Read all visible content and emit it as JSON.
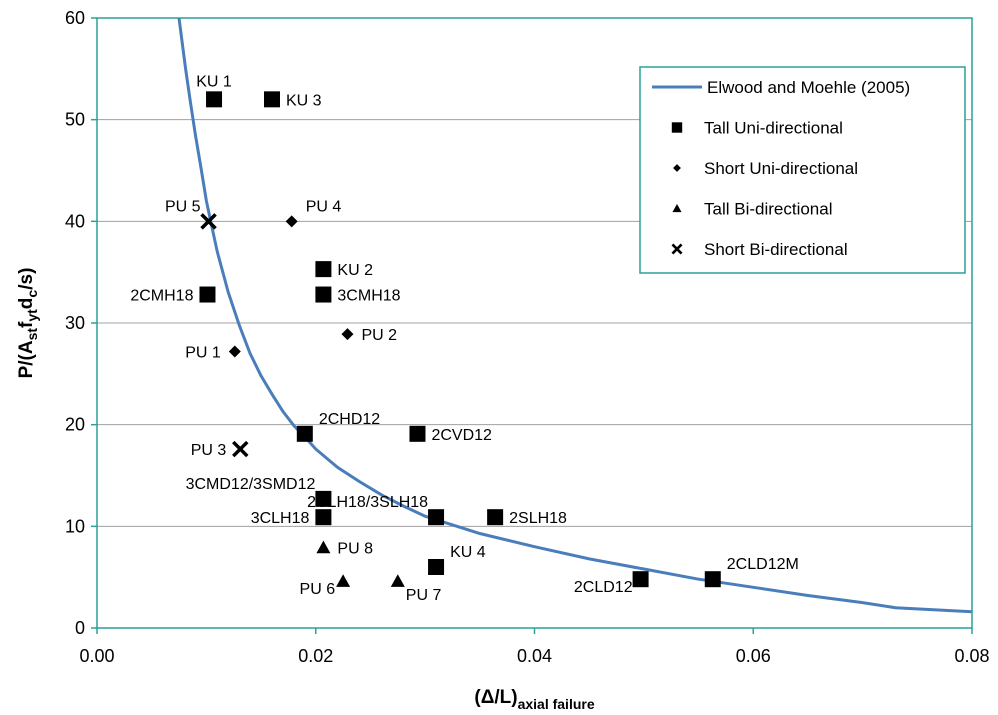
{
  "chart_data": {
    "type": "scatter",
    "xlabel": {
      "main": "(Δ/L)",
      "sub": "axial failure"
    },
    "ylabel": {
      "parts": [
        {
          "t": "P/(A"
        },
        {
          "t": "st",
          "sub": true
        },
        {
          "t": "f"
        },
        {
          "t": "yt",
          "sub": true
        },
        {
          "t": "d"
        },
        {
          "t": "c",
          "sub": true
        },
        {
          "t": "/s)"
        }
      ]
    },
    "xlim": [
      0,
      0.08
    ],
    "ylim": [
      0,
      60
    ],
    "x_ticks": [
      {
        "v": 0.0,
        "label": "0.00"
      },
      {
        "v": 0.02,
        "label": "0.02"
      },
      {
        "v": 0.04,
        "label": "0.04"
      },
      {
        "v": 0.06,
        "label": "0.06"
      },
      {
        "v": 0.08,
        "label": "0.08"
      }
    ],
    "y_ticks": [
      {
        "v": 0,
        "label": "0"
      },
      {
        "v": 10,
        "label": "10"
      },
      {
        "v": 20,
        "label": "20"
      },
      {
        "v": 30,
        "label": "30"
      },
      {
        "v": 40,
        "label": "40"
      },
      {
        "v": 50,
        "label": "50"
      },
      {
        "v": 60,
        "label": "60"
      }
    ],
    "grid": "horizontal",
    "legend_position": "top-right",
    "colors": {
      "curve": "#4a7ebb",
      "frame": "#2aa198",
      "grid": "#a0a0a0",
      "marker": "#000000"
    },
    "series": [
      {
        "name": "Elwood and Moehle (2005)",
        "marker": "line",
        "points": [
          [
            0.0075,
            60.0
          ],
          [
            0.0078,
            57.5
          ],
          [
            0.0081,
            55.0
          ],
          [
            0.0085,
            52.0
          ],
          [
            0.009,
            48.5
          ],
          [
            0.0095,
            45.3
          ],
          [
            0.01,
            42.0
          ],
          [
            0.0105,
            39.5
          ],
          [
            0.011,
            37.0
          ],
          [
            0.012,
            33.0
          ],
          [
            0.013,
            29.8
          ],
          [
            0.014,
            27.0
          ],
          [
            0.015,
            24.8
          ],
          [
            0.016,
            23.0
          ],
          [
            0.017,
            21.3
          ],
          [
            0.018,
            19.9
          ],
          [
            0.019,
            18.8
          ],
          [
            0.02,
            17.6
          ],
          [
            0.022,
            15.8
          ],
          [
            0.024,
            14.4
          ],
          [
            0.026,
            13.1
          ],
          [
            0.028,
            12.0
          ],
          [
            0.03,
            11.0
          ],
          [
            0.035,
            9.3
          ],
          [
            0.04,
            8.0
          ],
          [
            0.045,
            6.8
          ],
          [
            0.05,
            5.8
          ],
          [
            0.055,
            4.8
          ],
          [
            0.06,
            4.0
          ],
          [
            0.065,
            3.2
          ],
          [
            0.07,
            2.5
          ],
          [
            0.073,
            2.0
          ],
          [
            0.08,
            1.6
          ]
        ]
      },
      {
        "name": "Tall Uni-directional",
        "marker": "square",
        "points": [
          [
            0.0107,
            52.0
          ],
          [
            0.016,
            52.0
          ],
          [
            0.0207,
            35.3
          ],
          [
            0.0101,
            32.8
          ],
          [
            0.0207,
            32.8
          ],
          [
            0.019,
            19.1
          ],
          [
            0.0293,
            19.1
          ],
          [
            0.0207,
            12.7
          ],
          [
            0.0207,
            10.9
          ],
          [
            0.031,
            10.9
          ],
          [
            0.0364,
            10.9
          ],
          [
            0.031,
            6.0
          ],
          [
            0.0497,
            4.8
          ],
          [
            0.0563,
            4.8
          ]
        ]
      },
      {
        "name": "Short Uni-directional",
        "marker": "diamond",
        "points": [
          [
            0.0178,
            40.0
          ],
          [
            0.0126,
            27.2
          ],
          [
            0.0229,
            28.9
          ]
        ]
      },
      {
        "name": "Tall Bi-directional",
        "marker": "triangle",
        "points": [
          [
            0.0207,
            7.9
          ],
          [
            0.0225,
            4.6
          ],
          [
            0.0275,
            4.6
          ]
        ]
      },
      {
        "name": "Short Bi-directional",
        "marker": "x",
        "points": [
          [
            0.0102,
            40.0
          ],
          [
            0.0131,
            17.6
          ]
        ]
      }
    ],
    "annotations": [
      {
        "text": "KU 1",
        "x": 0.0107,
        "y": 52.0,
        "pos": "above"
      },
      {
        "text": "KU 3",
        "x": 0.016,
        "y": 52.0,
        "pos": "right"
      },
      {
        "text": "PU 5",
        "x": 0.0102,
        "y": 40.0,
        "pos": "upper-left"
      },
      {
        "text": "PU 4",
        "x": 0.0178,
        "y": 40.0,
        "pos": "upper-right"
      },
      {
        "text": "KU 2",
        "x": 0.0207,
        "y": 35.3,
        "pos": "right"
      },
      {
        "text": "2CMH18",
        "x": 0.0101,
        "y": 32.8,
        "pos": "left"
      },
      {
        "text": "3CMH18",
        "x": 0.0207,
        "y": 32.8,
        "pos": "right"
      },
      {
        "text": "PU 2",
        "x": 0.0229,
        "y": 28.9,
        "pos": "right"
      },
      {
        "text": "PU 1",
        "x": 0.0126,
        "y": 27.2,
        "pos": "left"
      },
      {
        "text": "2CHD12",
        "x": 0.019,
        "y": 19.1,
        "pos": "upper-right"
      },
      {
        "text": "2CVD12",
        "x": 0.0293,
        "y": 19.1,
        "pos": "right"
      },
      {
        "text": "PU 3",
        "x": 0.0131,
        "y": 17.6,
        "pos": "left"
      },
      {
        "text": "3CMD12/3SMD12",
        "x": 0.0207,
        "y": 12.7,
        "pos": "upper-left"
      },
      {
        "text": "2CLH18/3SLH18",
        "x": 0.031,
        "y": 10.9,
        "pos": "upper-left"
      },
      {
        "text": "3CLH18",
        "x": 0.0207,
        "y": 10.9,
        "pos": "left"
      },
      {
        "text": "2SLH18",
        "x": 0.0364,
        "y": 10.9,
        "pos": "right"
      },
      {
        "text": "PU 8",
        "x": 0.0207,
        "y": 7.9,
        "pos": "right"
      },
      {
        "text": "KU 4",
        "x": 0.031,
        "y": 6.0,
        "pos": "upper-right"
      },
      {
        "text": "PU 6",
        "x": 0.0225,
        "y": 4.6,
        "pos": "lower-left"
      },
      {
        "text": "PU 7",
        "x": 0.0275,
        "y": 4.6,
        "pos": "lower-right"
      },
      {
        "text": "2CLD12",
        "x": 0.0497,
        "y": 4.8,
        "pos": "lower-left"
      },
      {
        "text": "2CLD12M",
        "x": 0.0563,
        "y": 4.8,
        "pos": "upper-right"
      }
    ]
  }
}
